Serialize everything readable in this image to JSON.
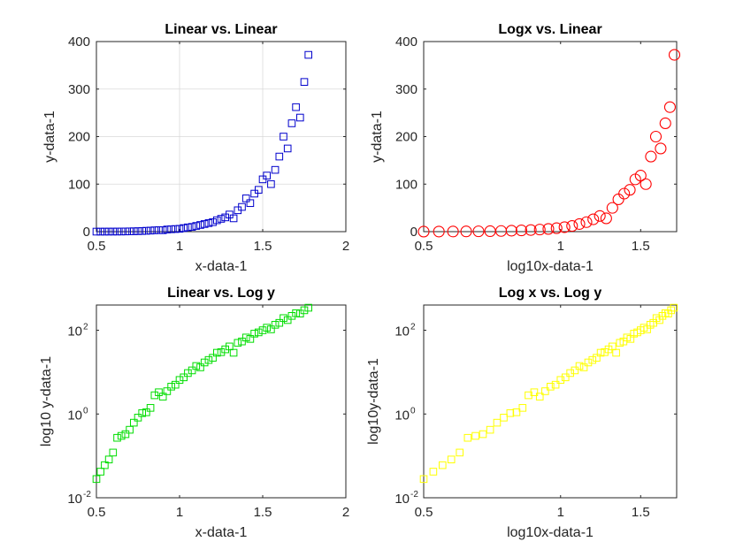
{
  "chart_data": [
    {
      "type": "scatter",
      "title": "Linear vs. Linear",
      "xlabel": "x-data-1",
      "ylabel": "y-data-1",
      "xscale": "linear",
      "yscale": "linear",
      "xlim": [
        0.5,
        2
      ],
      "ylim": [
        0,
        400
      ],
      "xticks": [
        0.5,
        1,
        1.5,
        2
      ],
      "xtick_labels": [
        "0.5",
        "1",
        "1.5",
        "2"
      ],
      "yticks": [
        0,
        100,
        200,
        300,
        400
      ],
      "ytick_labels": [
        "0",
        "100",
        "200",
        "300",
        "400"
      ],
      "grid": true,
      "marker": "square",
      "color": "#0000cc",
      "x": [
        0.5,
        0.525,
        0.55,
        0.575,
        0.6,
        0.625,
        0.65,
        0.675,
        0.7,
        0.725,
        0.75,
        0.775,
        0.8,
        0.825,
        0.85,
        0.875,
        0.9,
        0.925,
        0.95,
        0.975,
        1.0,
        1.025,
        1.05,
        1.075,
        1.1,
        1.125,
        1.15,
        1.175,
        1.2,
        1.225,
        1.25,
        1.275,
        1.3,
        1.325,
        1.35,
        1.375,
        1.4,
        1.425,
        1.45,
        1.475,
        1.5,
        1.525,
        1.55,
        1.575,
        1.6,
        1.625,
        1.65,
        1.675,
        1.7,
        1.725,
        1.75,
        1.775
      ],
      "y": [
        0.03,
        0.05,
        0.07,
        0.1,
        0.14,
        0.2,
        0.28,
        0.4,
        0.55,
        0.75,
        1.0,
        1.3,
        1.8,
        2.2,
        2.8,
        3.2,
        3.0,
        4.5,
        5.0,
        5.5,
        6.0,
        7.5,
        9.0,
        10.0,
        12.0,
        14.0,
        16.0,
        18.0,
        20.0,
        24.0,
        27.0,
        30.0,
        36.0,
        28.0,
        45.0,
        52.0,
        70.0,
        60.0,
        80.0,
        88.0,
        110.0,
        118.0,
        100.0,
        130.0,
        158.0,
        200.0,
        175.0,
        228.0,
        262.0,
        240.0,
        315.0,
        372.0
      ]
    },
    {
      "type": "scatter",
      "title": "Logx vs. Linear",
      "xlabel": "log10x-data-1",
      "ylabel": "y-data-1",
      "xscale": "log",
      "yscale": "linear",
      "xlim": [
        0.5,
        1.8
      ],
      "ylim": [
        0,
        400
      ],
      "xticks": [
        0.5,
        1,
        1.5
      ],
      "xtick_labels": [
        "0.5",
        "1",
        "1.5"
      ],
      "yticks": [
        0,
        100,
        200,
        300,
        400
      ],
      "ytick_labels": [
        "0",
        "100",
        "200",
        "300",
        "400"
      ],
      "grid": false,
      "marker": "circle",
      "color": "#ff0000",
      "x": [
        0.5,
        0.54,
        0.58,
        0.62,
        0.66,
        0.7,
        0.74,
        0.78,
        0.82,
        0.86,
        0.9,
        0.94,
        0.98,
        1.02,
        1.06,
        1.1,
        1.14,
        1.18,
        1.22,
        1.26,
        1.3,
        1.34,
        1.38,
        1.42,
        1.46,
        1.5,
        1.54,
        1.58,
        1.62,
        1.66,
        1.7,
        1.74,
        1.78
      ],
      "y": [
        0.1,
        0.2,
        0.3,
        0.5,
        0.7,
        1.0,
        1.4,
        2.0,
        2.6,
        3.4,
        4.4,
        5.7,
        7.3,
        9.4,
        12.0,
        16.0,
        20.0,
        26.0,
        33.0,
        28.0,
        50.0,
        68.0,
        80.0,
        88.0,
        110.0,
        118.0,
        100.0,
        158.0,
        200.0,
        175.0,
        228.0,
        262.0,
        372.0
      ]
    },
    {
      "type": "scatter",
      "title": "Linear vs. Log y",
      "xlabel": "x-data-1",
      "ylabel": "log10 y-data-1",
      "xscale": "linear",
      "yscale": "log",
      "xlim": [
        0.5,
        2
      ],
      "ylim": [
        0.01,
        400
      ],
      "xticks": [
        0.5,
        1,
        1.5,
        2
      ],
      "xtick_labels": [
        "0.5",
        "1",
        "1.5",
        "2"
      ],
      "yticks": [
        0.01,
        1,
        100
      ],
      "ytick_labels": [
        [
          "10",
          "-2"
        ],
        [
          "10",
          "0"
        ],
        [
          "10",
          "2"
        ]
      ],
      "grid": false,
      "marker": "square",
      "color": "#00dd00",
      "x": [
        0.5,
        0.525,
        0.55,
        0.575,
        0.6,
        0.625,
        0.65,
        0.675,
        0.7,
        0.725,
        0.75,
        0.775,
        0.8,
        0.825,
        0.85,
        0.875,
        0.9,
        0.925,
        0.95,
        0.975,
        1.0,
        1.025,
        1.05,
        1.075,
        1.1,
        1.125,
        1.15,
        1.175,
        1.2,
        1.225,
        1.25,
        1.275,
        1.3,
        1.325,
        1.35,
        1.375,
        1.4,
        1.425,
        1.45,
        1.475,
        1.5,
        1.525,
        1.55,
        1.575,
        1.6,
        1.625,
        1.65,
        1.675,
        1.7,
        1.725,
        1.75,
        1.775
      ],
      "y": [
        0.028,
        0.042,
        0.06,
        0.082,
        0.12,
        0.27,
        0.3,
        0.33,
        0.42,
        0.62,
        0.82,
        1.05,
        1.1,
        1.4,
        2.8,
        3.3,
        2.6,
        3.5,
        4.5,
        5.0,
        6.5,
        7.5,
        9.5,
        11.0,
        14.0,
        13.0,
        17.0,
        19.5,
        22.0,
        29.0,
        30.0,
        35.0,
        41.0,
        29.0,
        50.0,
        54.0,
        67.0,
        62.0,
        83.0,
        89.0,
        100.0,
        115.0,
        105.0,
        135.0,
        150.0,
        195.0,
        175.0,
        220.0,
        255.0,
        250.0,
        300.0,
        345.0
      ]
    },
    {
      "type": "scatter",
      "title": "Log x vs. Log y",
      "xlabel": "log10x-data-1",
      "ylabel": "log10y-data-1",
      "xscale": "log",
      "yscale": "log",
      "xlim": [
        0.5,
        1.8
      ],
      "ylim": [
        0.01,
        400
      ],
      "xticks": [
        0.5,
        1,
        1.5
      ],
      "xtick_labels": [
        "0.5",
        "1",
        "1.5"
      ],
      "yticks": [
        0.01,
        1,
        100
      ],
      "ytick_labels": [
        [
          "10",
          "-2"
        ],
        [
          "10",
          "0"
        ],
        [
          "10",
          "2"
        ]
      ],
      "grid": false,
      "marker": "square",
      "color": "#ffff00",
      "x": [
        0.5,
        0.525,
        0.55,
        0.575,
        0.6,
        0.625,
        0.65,
        0.675,
        0.7,
        0.725,
        0.75,
        0.775,
        0.8,
        0.825,
        0.85,
        0.875,
        0.9,
        0.925,
        0.95,
        0.975,
        1.0,
        1.025,
        1.05,
        1.075,
        1.1,
        1.125,
        1.15,
        1.175,
        1.2,
        1.225,
        1.25,
        1.275,
        1.3,
        1.325,
        1.35,
        1.375,
        1.4,
        1.425,
        1.45,
        1.475,
        1.5,
        1.525,
        1.55,
        1.575,
        1.6,
        1.625,
        1.65,
        1.675,
        1.7,
        1.725,
        1.75,
        1.775
      ],
      "y": [
        0.028,
        0.042,
        0.06,
        0.082,
        0.12,
        0.27,
        0.3,
        0.33,
        0.42,
        0.62,
        0.82,
        1.05,
        1.1,
        1.4,
        2.8,
        3.3,
        2.6,
        3.5,
        4.5,
        5.0,
        6.5,
        7.5,
        9.5,
        11.0,
        14.0,
        13.0,
        17.0,
        19.5,
        22.0,
        29.0,
        30.0,
        35.0,
        41.0,
        29.0,
        50.0,
        54.0,
        67.0,
        62.0,
        83.0,
        89.0,
        100.0,
        115.0,
        105.0,
        135.0,
        150.0,
        195.0,
        175.0,
        220.0,
        255.0,
        250.0,
        300.0,
        345.0
      ]
    }
  ]
}
